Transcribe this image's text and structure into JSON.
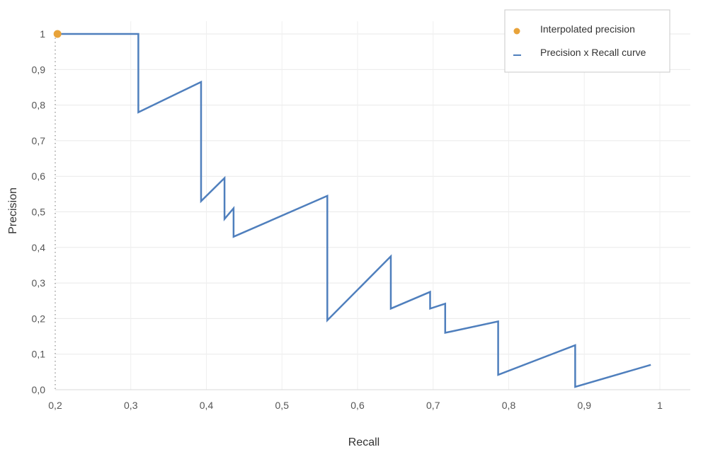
{
  "chart_data": {
    "type": "line",
    "xlabel": "Recall",
    "ylabel": "Precision",
    "xlim": [
      0.2,
      1.0
    ],
    "ylim": [
      0.0,
      1.0
    ],
    "x_ticks": [
      "0,2",
      "0,3",
      "0,4",
      "0,5",
      "0,6",
      "0,7",
      "0,8",
      "0,9",
      "1"
    ],
    "x_tick_values": [
      0.2,
      0.3,
      0.4,
      0.5,
      0.6,
      0.7,
      0.8,
      0.9,
      1.0
    ],
    "y_ticks": [
      "0,0",
      "0,1",
      "0,2",
      "0,3",
      "0,4",
      "0,5",
      "0,6",
      "0,7",
      "0,8",
      "0,9",
      "1"
    ],
    "y_tick_values": [
      0.0,
      0.1,
      0.2,
      0.3,
      0.4,
      0.5,
      0.6,
      0.7,
      0.8,
      0.9,
      1.0
    ],
    "grid": true,
    "legend_position": "top-right",
    "series": [
      {
        "name": "Interpolated precision",
        "type": "scatter",
        "color": "#E8A33A",
        "points": [
          [
            0.203,
            1.0
          ]
        ]
      },
      {
        "name": "Precision x Recall curve",
        "type": "line",
        "color": "#4F7FBD",
        "points": [
          [
            0.203,
            1.0
          ],
          [
            0.31,
            1.0
          ],
          [
            0.31,
            0.78
          ],
          [
            0.393,
            0.865
          ],
          [
            0.393,
            0.53
          ],
          [
            0.424,
            0.595
          ],
          [
            0.424,
            0.48
          ],
          [
            0.436,
            0.51
          ],
          [
            0.436,
            0.43
          ],
          [
            0.56,
            0.545
          ],
          [
            0.56,
            0.195
          ],
          [
            0.644,
            0.375
          ],
          [
            0.644,
            0.228
          ],
          [
            0.696,
            0.275
          ],
          [
            0.696,
            0.228
          ],
          [
            0.716,
            0.242
          ],
          [
            0.716,
            0.16
          ],
          [
            0.786,
            0.192
          ],
          [
            0.786,
            0.042
          ],
          [
            0.888,
            0.125
          ],
          [
            0.888,
            0.008
          ],
          [
            0.988,
            0.07
          ]
        ]
      }
    ]
  }
}
